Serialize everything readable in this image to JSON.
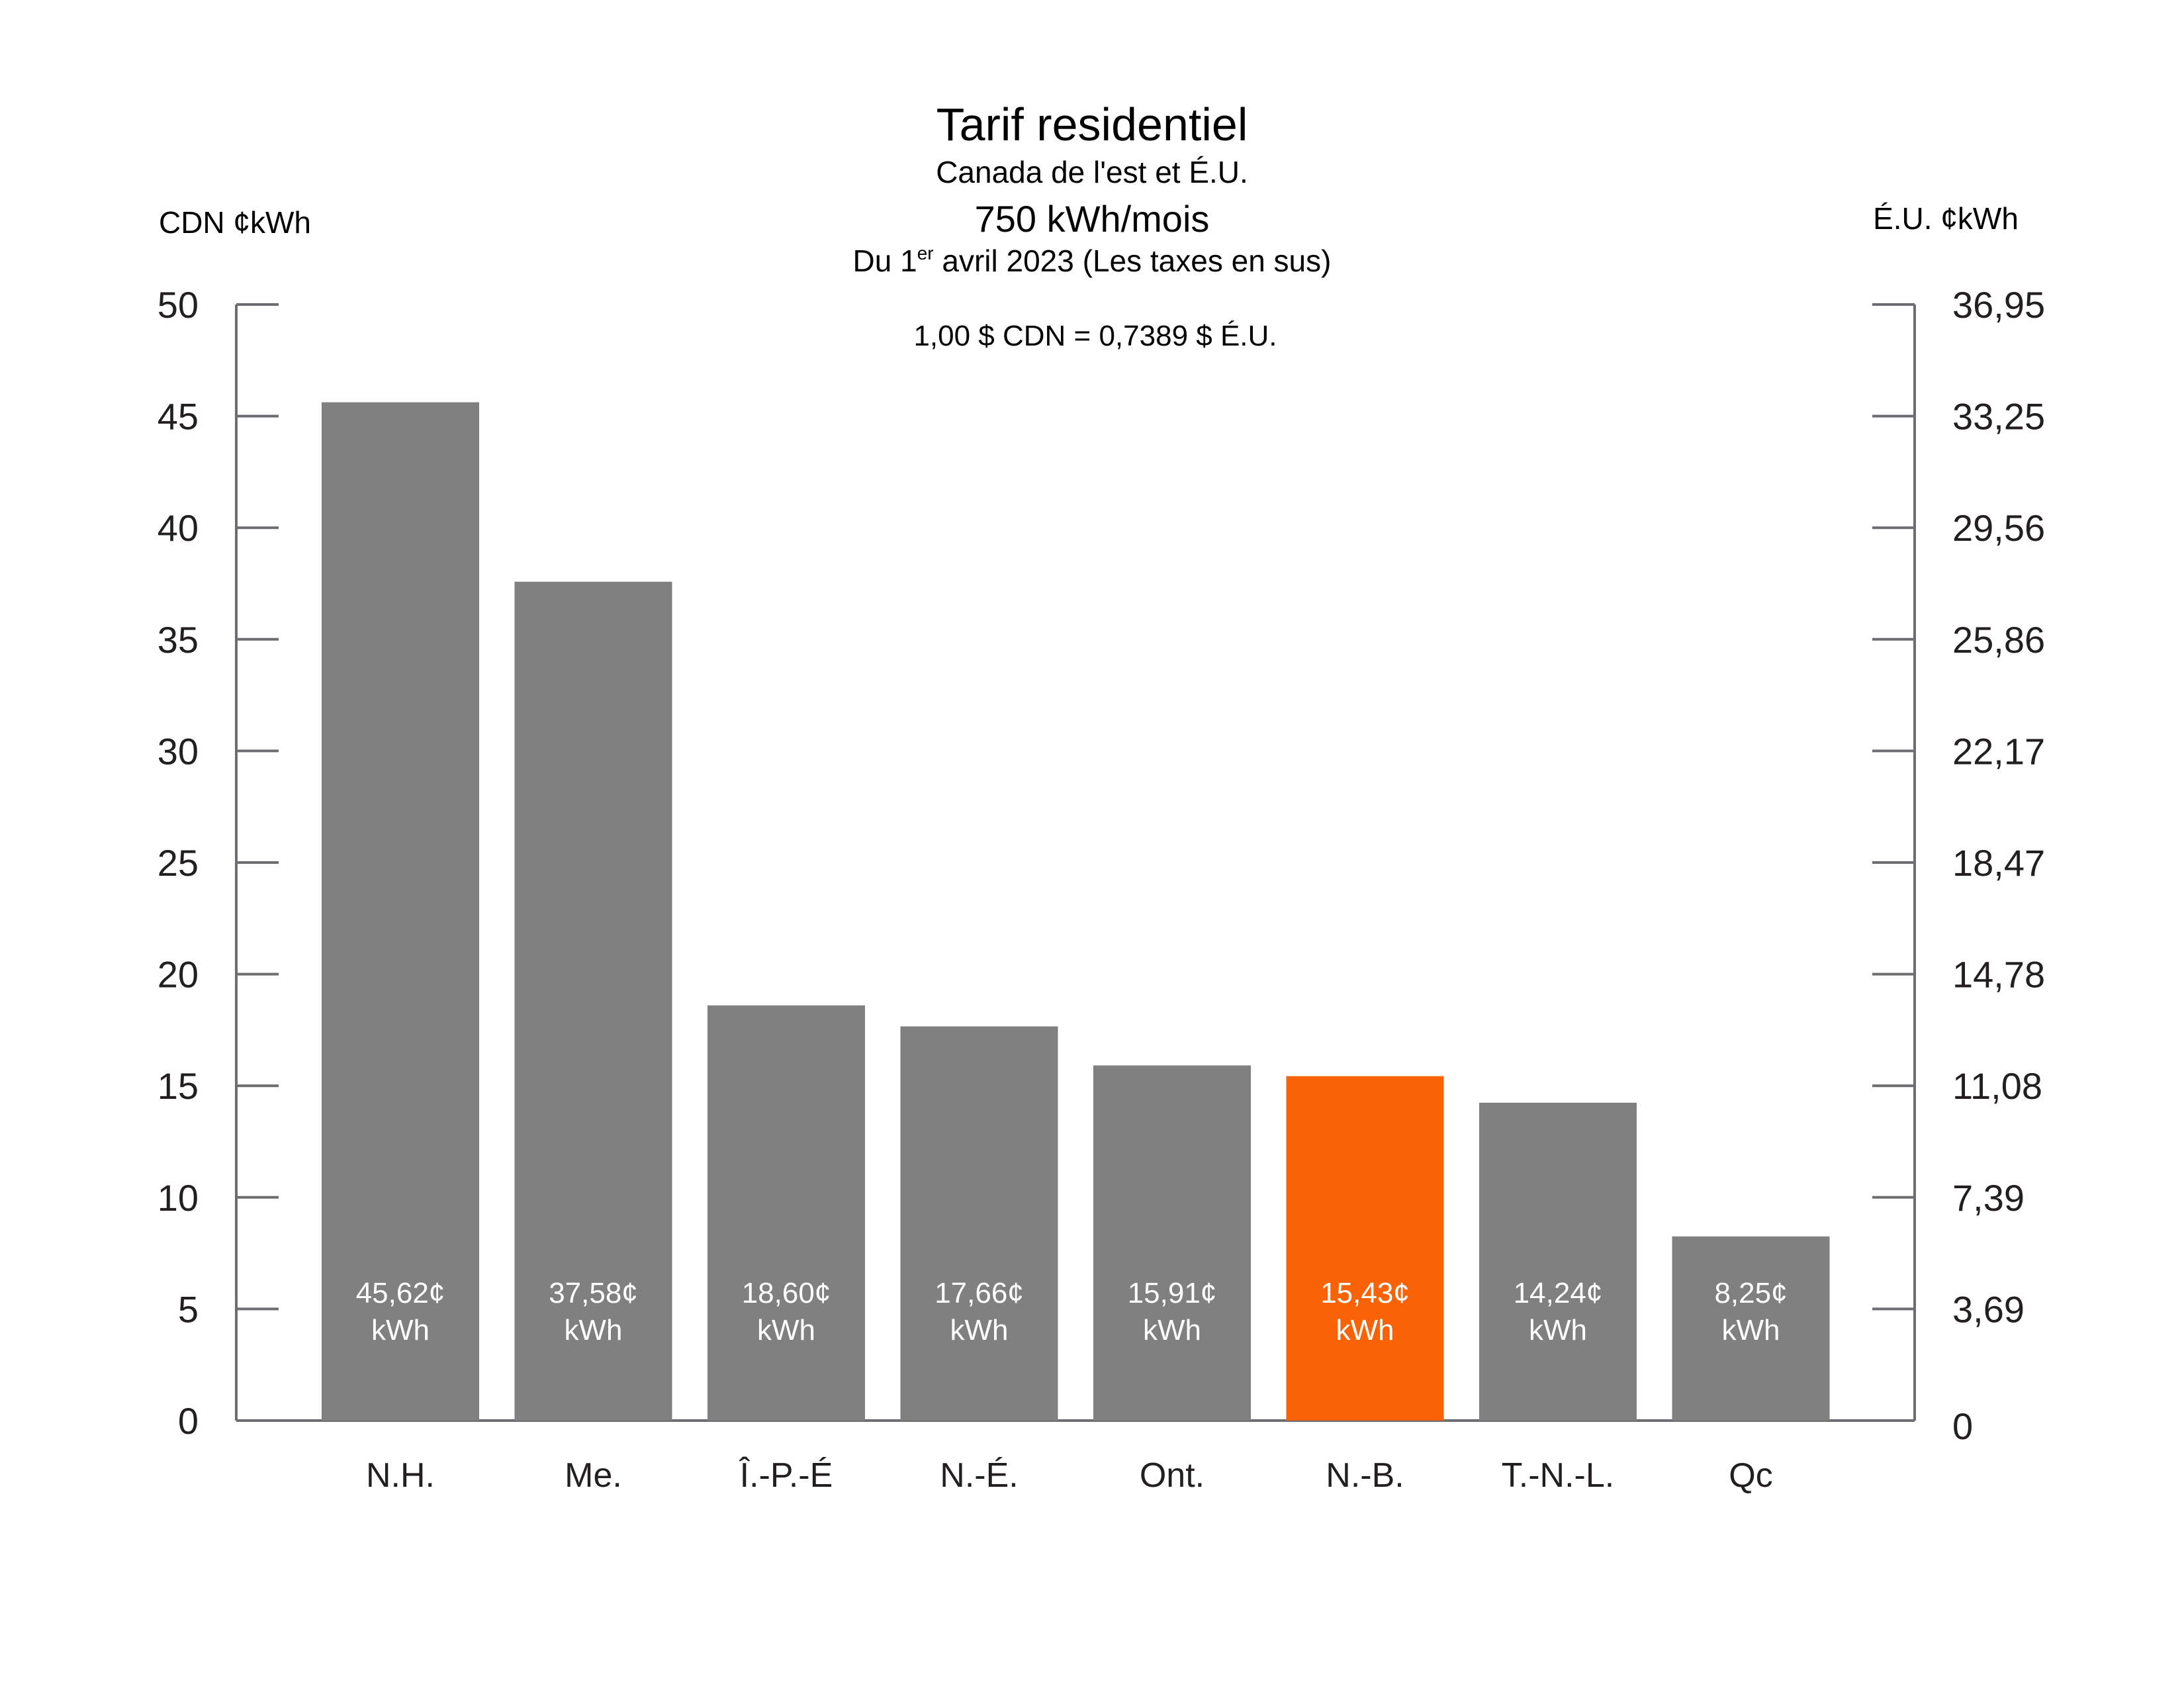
{
  "chart_data": {
    "type": "bar",
    "title": "Tarif residentiel",
    "subtitle": "Canada de l'est et É.U.",
    "subtitle2": "750 kWh/mois",
    "date_prefix": "Du 1",
    "date_sup": "er",
    "date_suffix": " avril 2023 (Les taxes en sus)",
    "exchange_note": "1,00 $ CDN = 0,7389 $ É.U.",
    "ylabel_left": "CDN ¢kWh",
    "ylabel_right": "É.U. ¢kWh",
    "ylim": [
      0,
      50
    ],
    "left_ticks": [
      "0",
      "5",
      "10",
      "15",
      "20",
      "25",
      "30",
      "35",
      "40",
      "45",
      "50"
    ],
    "right_ticks": [
      "0",
      "3,69",
      "7,39",
      "11,08",
      "14,78",
      "18,47",
      "22,17",
      "25,86",
      "29,56",
      "33,25",
      "36,95"
    ],
    "categories": [
      "N.H.",
      "Me.",
      "Î.-P.-É",
      "N.-É.",
      "Ont.",
      "N.-B.",
      "T.-N.-L.",
      "Qc"
    ],
    "values": [
      45.62,
      37.58,
      18.6,
      17.66,
      15.91,
      15.43,
      14.24,
      8.25
    ],
    "data_labels": [
      "45,62¢",
      "37,58¢",
      "18,60¢",
      "17,66¢",
      "15,91¢",
      "15,43¢",
      "14,24¢",
      "8,25¢"
    ],
    "data_label_unit": "kWh",
    "highlight_index": 5,
    "colors": {
      "bar": "#808080",
      "highlight": "#f96306",
      "axis": "#6d6e71",
      "text": "#231f20"
    },
    "grid": false
  }
}
